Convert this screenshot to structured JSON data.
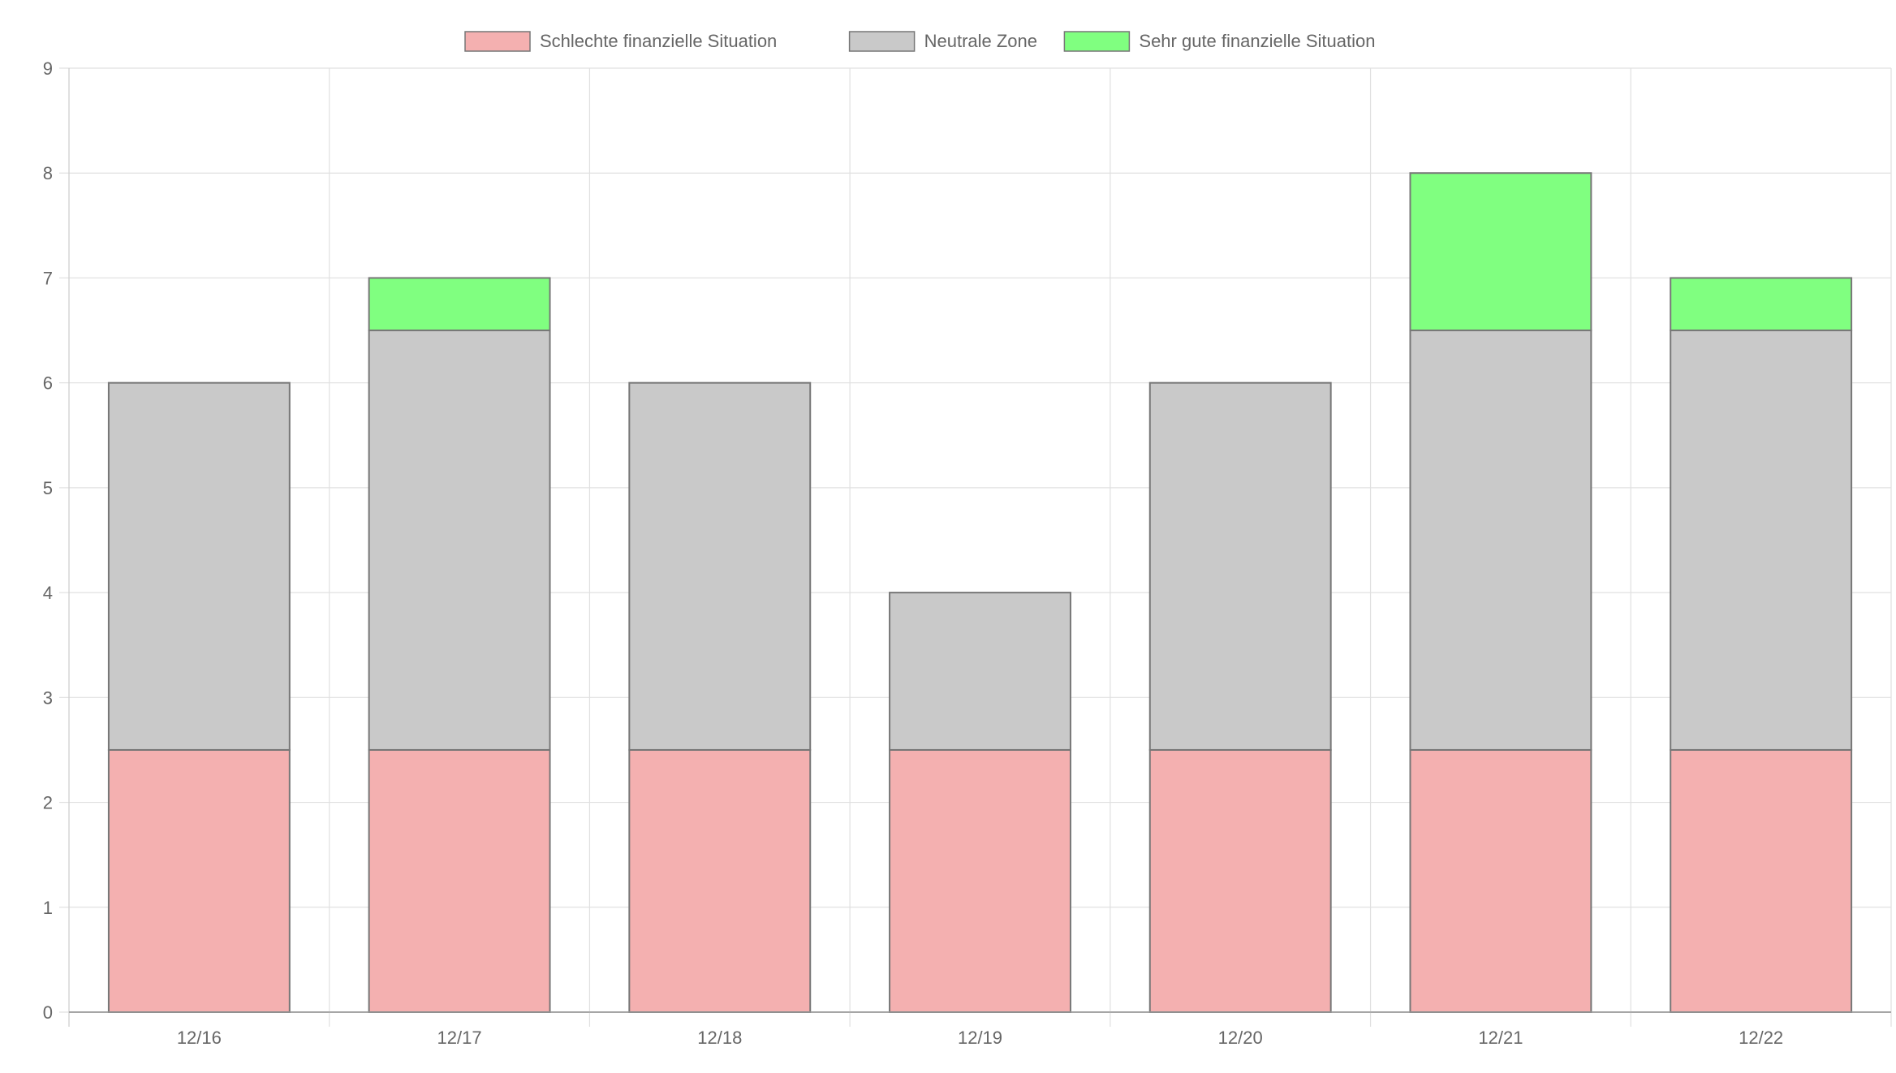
{
  "chart_data": {
    "type": "bar",
    "stacked": true,
    "categories": [
      "12/16",
      "12/17",
      "12/18",
      "12/19",
      "12/20",
      "12/21",
      "12/22"
    ],
    "series": [
      {
        "name": "Schlechte finanzielle Situation",
        "color": "#f4b0b0",
        "values": [
          2.5,
          2.5,
          2.5,
          2.5,
          2.5,
          2.5,
          2.5
        ]
      },
      {
        "name": "Neutrale Zone",
        "color": "#c9c9c9",
        "values": [
          3.5,
          4,
          3.5,
          1.5,
          3.5,
          4,
          4
        ]
      },
      {
        "name": "Sehr gute finanzielle Situation",
        "color": "#80ff80",
        "values": [
          0,
          0.5,
          0,
          0,
          0,
          1.5,
          0.5
        ]
      }
    ],
    "ylim": [
      0,
      9
    ],
    "yticks": [
      "0",
      "1",
      "2",
      "3",
      "4",
      "5",
      "6",
      "7",
      "8",
      "9"
    ],
    "grid": true,
    "legend_position": "top-center",
    "xlabel": "",
    "ylabel": "",
    "title": ""
  }
}
